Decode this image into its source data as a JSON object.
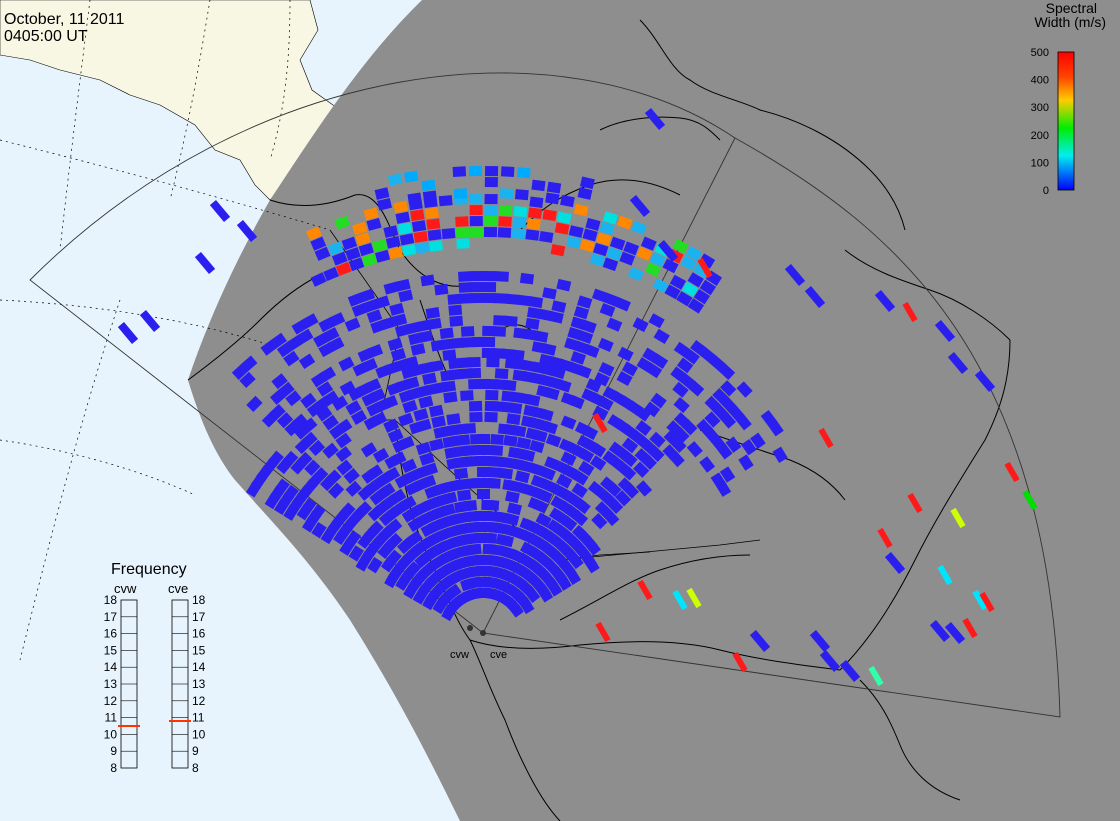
{
  "header": {
    "date": "October, 11 2011",
    "time": "0405:00 UT"
  },
  "legend": {
    "title_line1": "Spectral",
    "title_line2": "Width (m/s)",
    "ticks": [
      "500",
      "400",
      "300",
      "200",
      "100",
      "0"
    ],
    "colors": [
      "#ff0000",
      "#ff8800",
      "#ffff00",
      "#00ff00",
      "#00ffff",
      "#0000ff"
    ]
  },
  "frequency_panel": {
    "title": "Frequency",
    "radars": [
      {
        "label": "cvw",
        "freq_mhz": 10.5
      },
      {
        "label": "cve",
        "freq_mhz": 10.8
      }
    ],
    "scale": [
      "18",
      "17",
      "16",
      "15",
      "14",
      "13",
      "12",
      "11",
      "10",
      "9",
      "8"
    ],
    "marker_color": "#ff3300"
  },
  "radars": [
    "cvw",
    "cve"
  ],
  "colors": {
    "ocean": "#e7f4fd",
    "land_day": "#f8f7e4",
    "night": "#8e8e8e",
    "low_width": "#2b1ff0",
    "mid_width": "#1ab3f0",
    "high_width": "#ff1a1a"
  }
}
